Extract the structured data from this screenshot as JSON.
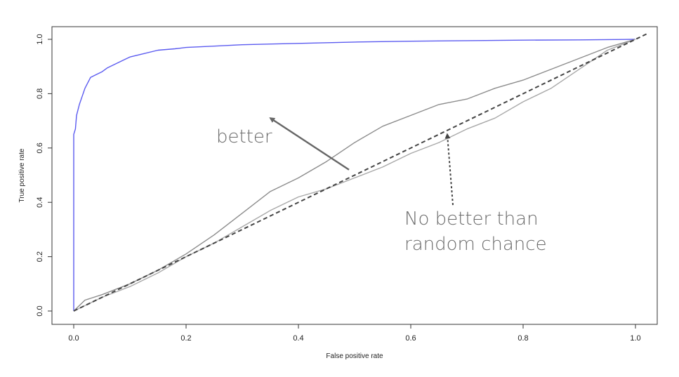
{
  "chart_data": {
    "type": "line",
    "title": "",
    "xlabel": "False positive rate",
    "ylabel": "True positive rate",
    "xlim": [
      0,
      1
    ],
    "ylim": [
      0,
      1
    ],
    "xticks": [
      "0.0",
      "0.2",
      "0.4",
      "0.6",
      "0.8",
      "1.0"
    ],
    "yticks": [
      "0.0",
      "0.2",
      "0.4",
      "0.6",
      "0.8",
      "1.0"
    ],
    "grid": false,
    "series": [
      {
        "color": "#5b5bf0",
        "style": "solid",
        "points": [
          [
            0,
            0
          ],
          [
            0,
            0.65
          ],
          [
            0.003,
            0.67
          ],
          [
            0.005,
            0.72
          ],
          [
            0.01,
            0.76
          ],
          [
            0.015,
            0.79
          ],
          [
            0.02,
            0.82
          ],
          [
            0.025,
            0.84
          ],
          [
            0.03,
            0.86
          ],
          [
            0.04,
            0.87
          ],
          [
            0.05,
            0.88
          ],
          [
            0.06,
            0.895
          ],
          [
            0.07,
            0.905
          ],
          [
            0.08,
            0.915
          ],
          [
            0.09,
            0.925
          ],
          [
            0.1,
            0.935
          ],
          [
            0.12,
            0.945
          ],
          [
            0.15,
            0.96
          ],
          [
            0.18,
            0.965
          ],
          [
            0.2,
            0.97
          ],
          [
            0.25,
            0.975
          ],
          [
            0.3,
            0.98
          ],
          [
            0.4,
            0.985
          ],
          [
            0.5,
            0.99
          ],
          [
            0.6,
            0.993
          ],
          [
            0.7,
            0.995
          ],
          [
            0.8,
            0.997
          ],
          [
            0.9,
            0.998
          ],
          [
            1.0,
            1.0
          ]
        ]
      },
      {
        "color": "#8c8c8c",
        "style": "solid",
        "points": [
          [
            0,
            0
          ],
          [
            0.02,
            0.04
          ],
          [
            0.05,
            0.06
          ],
          [
            0.1,
            0.1
          ],
          [
            0.15,
            0.15
          ],
          [
            0.2,
            0.21
          ],
          [
            0.25,
            0.28
          ],
          [
            0.3,
            0.36
          ],
          [
            0.35,
            0.44
          ],
          [
            0.4,
            0.49
          ],
          [
            0.45,
            0.55
          ],
          [
            0.5,
            0.62
          ],
          [
            0.55,
            0.68
          ],
          [
            0.6,
            0.72
          ],
          [
            0.65,
            0.76
          ],
          [
            0.7,
            0.78
          ],
          [
            0.75,
            0.82
          ],
          [
            0.8,
            0.85
          ],
          [
            0.85,
            0.89
          ],
          [
            0.9,
            0.93
          ],
          [
            0.95,
            0.97
          ],
          [
            1.0,
            1.0
          ]
        ]
      },
      {
        "color": "#a8a8a8",
        "style": "solid",
        "points": [
          [
            0,
            0
          ],
          [
            0.02,
            0.02
          ],
          [
            0.05,
            0.05
          ],
          [
            0.1,
            0.09
          ],
          [
            0.15,
            0.14
          ],
          [
            0.2,
            0.2
          ],
          [
            0.25,
            0.25
          ],
          [
            0.3,
            0.31
          ],
          [
            0.35,
            0.37
          ],
          [
            0.4,
            0.42
          ],
          [
            0.45,
            0.45
          ],
          [
            0.5,
            0.49
          ],
          [
            0.55,
            0.53
          ],
          [
            0.6,
            0.58
          ],
          [
            0.65,
            0.62
          ],
          [
            0.7,
            0.67
          ],
          [
            0.75,
            0.71
          ],
          [
            0.8,
            0.77
          ],
          [
            0.85,
            0.82
          ],
          [
            0.9,
            0.89
          ],
          [
            0.95,
            0.96
          ],
          [
            1.0,
            1.0
          ]
        ]
      },
      {
        "color": "#444444",
        "style": "dashed",
        "points": [
          [
            0,
            0
          ],
          [
            1.02,
            1.02
          ]
        ]
      }
    ],
    "annotations": [
      {
        "text": "better",
        "x": 0.26,
        "y": 0.63
      },
      {
        "lines": [
          "No better than",
          "random chance"
        ],
        "x": 0.59,
        "y": 0.33
      }
    ],
    "arrows": [
      {
        "from": [
          0.49,
          0.52
        ],
        "to": [
          0.35,
          0.71
        ],
        "color": "#666666",
        "style": "solid"
      },
      {
        "from": [
          0.675,
          0.39
        ],
        "to": [
          0.665,
          0.65
        ],
        "color": "#444444",
        "style": "dotted"
      }
    ]
  }
}
